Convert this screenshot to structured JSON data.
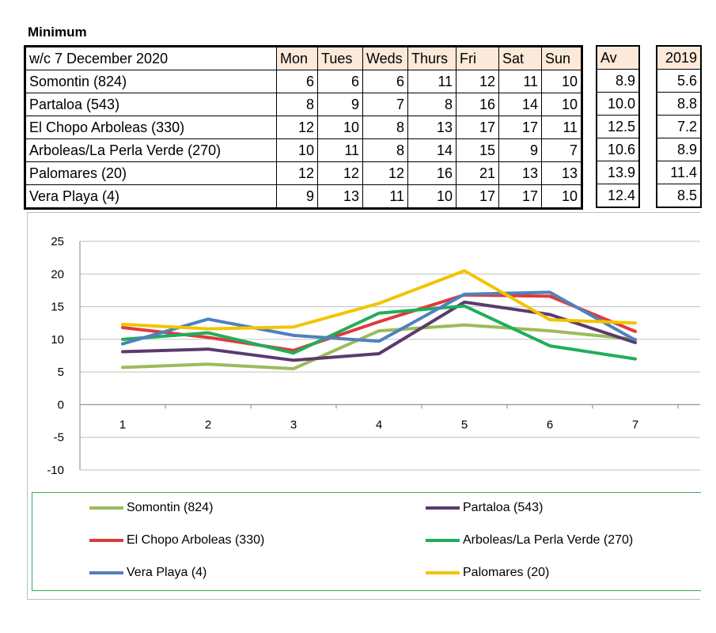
{
  "table": {
    "title": "Minimum",
    "week_label": "w/c 7 December 2020",
    "days": [
      "Mon",
      "Tues",
      "Weds",
      "Thurs",
      "Fri",
      "Sat",
      "Sun"
    ],
    "av_header": "Av",
    "year_header": "2019",
    "rows": [
      {
        "name": "Somontin (824)",
        "values": [
          "6",
          "6",
          "6",
          "11",
          "12",
          "11",
          "10"
        ],
        "av": "8.9",
        "y2019": "5.6"
      },
      {
        "name": "Partaloa (543)",
        "values": [
          "8",
          "9",
          "7",
          "8",
          "16",
          "14",
          "10"
        ],
        "av": "10.0",
        "y2019": "8.8"
      },
      {
        "name": "El Chopo Arboleas (330)",
        "values": [
          "12",
          "10",
          "8",
          "13",
          "17",
          "17",
          "11"
        ],
        "av": "12.5",
        "y2019": "7.2"
      },
      {
        "name": "Arboleas/La Perla Verde (270)",
        "values": [
          "10",
          "11",
          "8",
          "14",
          "15",
          "9",
          "7"
        ],
        "av": "10.6",
        "y2019": "8.9"
      },
      {
        "name": "Palomares (20)",
        "values": [
          "12",
          "12",
          "12",
          "16",
          "21",
          "13",
          "13"
        ],
        "av": "13.9",
        "y2019": "11.4"
      },
      {
        "name": "Vera Playa (4)",
        "values": [
          "9",
          "13",
          "11",
          "10",
          "17",
          "17",
          "10"
        ],
        "av": "12.4",
        "y2019": "8.5"
      }
    ]
  },
  "chart_data": {
    "type": "line",
    "x": [
      1,
      2,
      3,
      4,
      5,
      6,
      7
    ],
    "x_tick_labels": [
      "1",
      "2",
      "3",
      "4",
      "5",
      "6",
      "7"
    ],
    "ylim": [
      -10,
      25
    ],
    "y_ticks": [
      25,
      20,
      15,
      10,
      5,
      0,
      -5,
      -10
    ],
    "y_tick_labels": [
      "25",
      "20",
      "15",
      "10",
      "5",
      "0",
      "-5",
      "-10"
    ],
    "grid": true,
    "legend_position": "bottom",
    "series": [
      {
        "name": "Somontin (824)",
        "color": "#9bbb59",
        "values": [
          5.7,
          6.2,
          5.5,
          11.3,
          12.2,
          11.3,
          10.0
        ]
      },
      {
        "name": "Partaloa (543)",
        "color": "#5b3a6e",
        "values": [
          8.1,
          8.5,
          6.8,
          7.8,
          15.7,
          13.8,
          9.5
        ]
      },
      {
        "name": "El Chopo Arboleas (330)",
        "color": "#e03a3a",
        "values": [
          11.8,
          10.3,
          8.3,
          12.7,
          16.8,
          16.6,
          11.2
        ]
      },
      {
        "name": "Arboleas/La Perla Verde (270)",
        "color": "#1fae5a",
        "values": [
          10.0,
          11.0,
          7.9,
          14.0,
          15.1,
          9.0,
          7.0
        ]
      },
      {
        "name": "Vera Playa (4)",
        "color": "#4f81bd",
        "values": [
          9.3,
          13.1,
          10.6,
          9.7,
          16.9,
          17.2,
          9.9
        ]
      },
      {
        "name": "Palomares (20)",
        "color": "#f2c400",
        "values": [
          12.3,
          11.6,
          11.9,
          15.5,
          20.5,
          13.0,
          12.5
        ]
      }
    ]
  }
}
